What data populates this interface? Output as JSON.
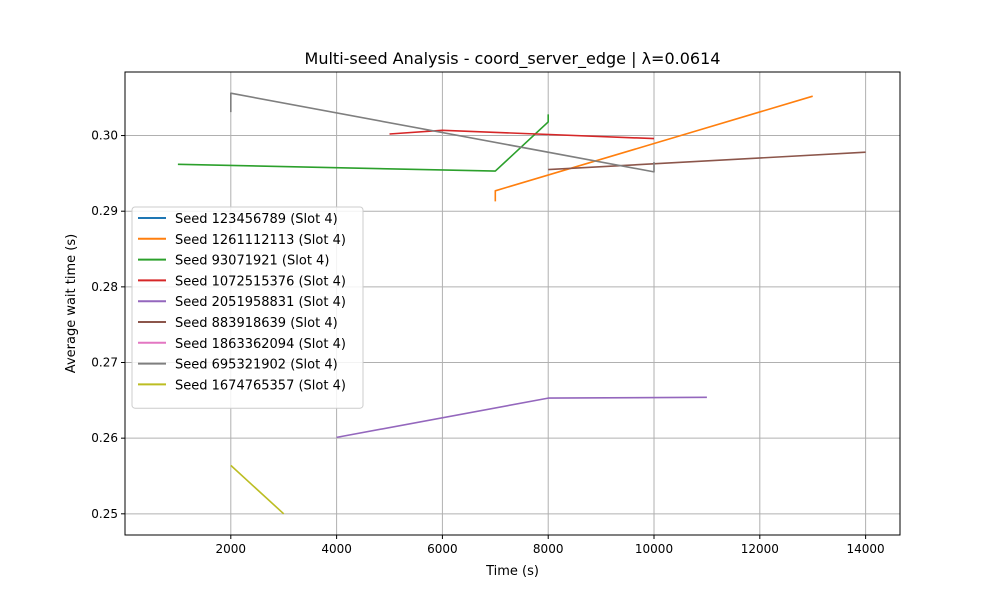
{
  "chart_data": {
    "type": "line",
    "title": "Multi-seed Analysis - coord_server_edge | λ=0.0614",
    "xlabel": "Time (s)",
    "ylabel": "Average wait time (s)",
    "xlim": [
      0,
      14650
    ],
    "ylim": [
      0.2472,
      0.3084
    ],
    "xticks": [
      2000,
      4000,
      6000,
      8000,
      10000,
      12000,
      14000
    ],
    "xtick_labels": [
      "2000",
      "4000",
      "6000",
      "8000",
      "10000",
      "12000",
      "14000"
    ],
    "yticks": [
      0.25,
      0.26,
      0.27,
      0.28,
      0.29,
      0.3
    ],
    "ytick_labels": [
      "0.25",
      "0.26",
      "0.27",
      "0.28",
      "0.29",
      "0.30"
    ],
    "grid": true,
    "legend_position": "center-left",
    "series": [
      {
        "name": "Seed 123456789 (Slot 4)",
        "color": "#1f77b4",
        "x": [],
        "y": []
      },
      {
        "name": "Seed 1261112113 (Slot 4)",
        "color": "#ff7f0e",
        "x": [
          7000,
          7000,
          13000
        ],
        "y": [
          0.2913,
          0.2927,
          0.3052
        ]
      },
      {
        "name": "Seed 93071921 (Slot 4)",
        "color": "#2ca02c",
        "x": [
          1000,
          7000,
          8000,
          8000
        ],
        "y": [
          0.2962,
          0.2953,
          0.3018,
          0.3028
        ]
      },
      {
        "name": "Seed 1072515376 (Slot 4)",
        "color": "#d62728",
        "x": [
          5000,
          6000,
          10000
        ],
        "y": [
          0.3002,
          0.3007,
          0.2996
        ]
      },
      {
        "name": "Seed 2051958831 (Slot 4)",
        "color": "#9467bd",
        "x": [
          4000,
          8000,
          11000
        ],
        "y": [
          0.2601,
          0.2653,
          0.2654
        ]
      },
      {
        "name": "Seed 883918639 (Slot 4)",
        "color": "#8c564b",
        "x": [
          8000,
          14000
        ],
        "y": [
          0.2955,
          0.2978
        ]
      },
      {
        "name": "Seed 1863362094 (Slot 4)",
        "color": "#e377c2",
        "x": [],
        "y": []
      },
      {
        "name": "Seed 695321902 (Slot 4)",
        "color": "#7f7f7f",
        "x": [
          2000,
          2000,
          10000,
          10000
        ],
        "y": [
          0.3031,
          0.3056,
          0.2952,
          0.2965
        ]
      },
      {
        "name": "Seed 1674765357 (Slot 4)",
        "color": "#bcbd22",
        "x": [
          2000,
          3000
        ],
        "y": [
          0.2564,
          0.25
        ]
      }
    ]
  }
}
